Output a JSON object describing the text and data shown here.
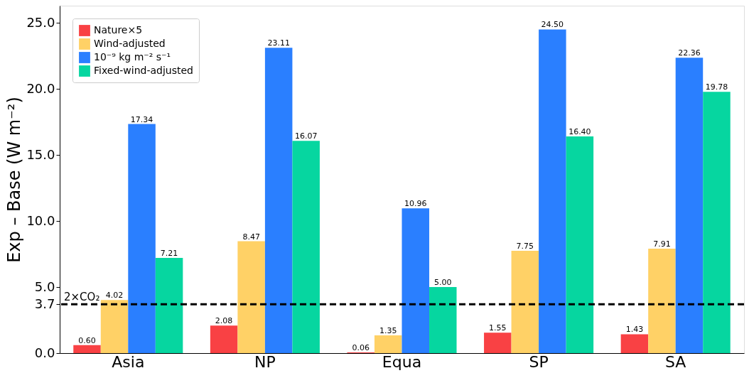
{
  "chart_data": {
    "type": "bar",
    "ylabel": "Exp – Base (W m⁻²)",
    "categories": [
      "Asia",
      "NP",
      "Equa",
      "SP",
      "SA"
    ],
    "series": [
      {
        "name": "Nature×5",
        "color": "#f94144",
        "values": [
          0.6,
          2.08,
          0.06,
          1.55,
          1.43
        ],
        "value_labels": [
          "0.60",
          "2.08",
          "0.06",
          "1.55",
          "1.43"
        ]
      },
      {
        "name": "Wind-adjusted",
        "color": "#ffd166",
        "values": [
          4.02,
          8.47,
          1.35,
          7.75,
          7.91
        ],
        "value_labels": [
          "4.02",
          "8.47",
          "1.35",
          "7.75",
          "7.91"
        ]
      },
      {
        "name": "10⁻⁹ kg m⁻² s⁻¹",
        "color": "#2a7fff",
        "values": [
          17.34,
          23.11,
          10.96,
          24.5,
          22.36
        ],
        "value_labels": [
          "17.34",
          "23.11",
          "10.96",
          "24.50",
          "22.36"
        ]
      },
      {
        "name": "Fixed-wind-adjusted",
        "color": "#06d6a0",
        "values": [
          7.21,
          16.07,
          5.0,
          16.4,
          19.78
        ],
        "value_labels": [
          "7.21",
          "16.07",
          "5.00",
          "16.40",
          "19.78"
        ]
      }
    ],
    "ylim": [
      0,
      26.3
    ],
    "yticks": [
      {
        "value": 0,
        "label": "0.0"
      },
      {
        "value": 3.7,
        "label": "3.7"
      },
      {
        "value": 5,
        "label": "5.0"
      },
      {
        "value": 10,
        "label": "10.0"
      },
      {
        "value": 15,
        "label": "15.0"
      },
      {
        "value": 20,
        "label": "20.0"
      },
      {
        "value": 25,
        "label": "25.0"
      }
    ],
    "ref_lines": [
      {
        "axis": "y",
        "value": 3.7,
        "label": "2×CO₂",
        "color": "#000000",
        "line_style": "dashed"
      }
    ],
    "legend": "top left",
    "grid": false
  }
}
